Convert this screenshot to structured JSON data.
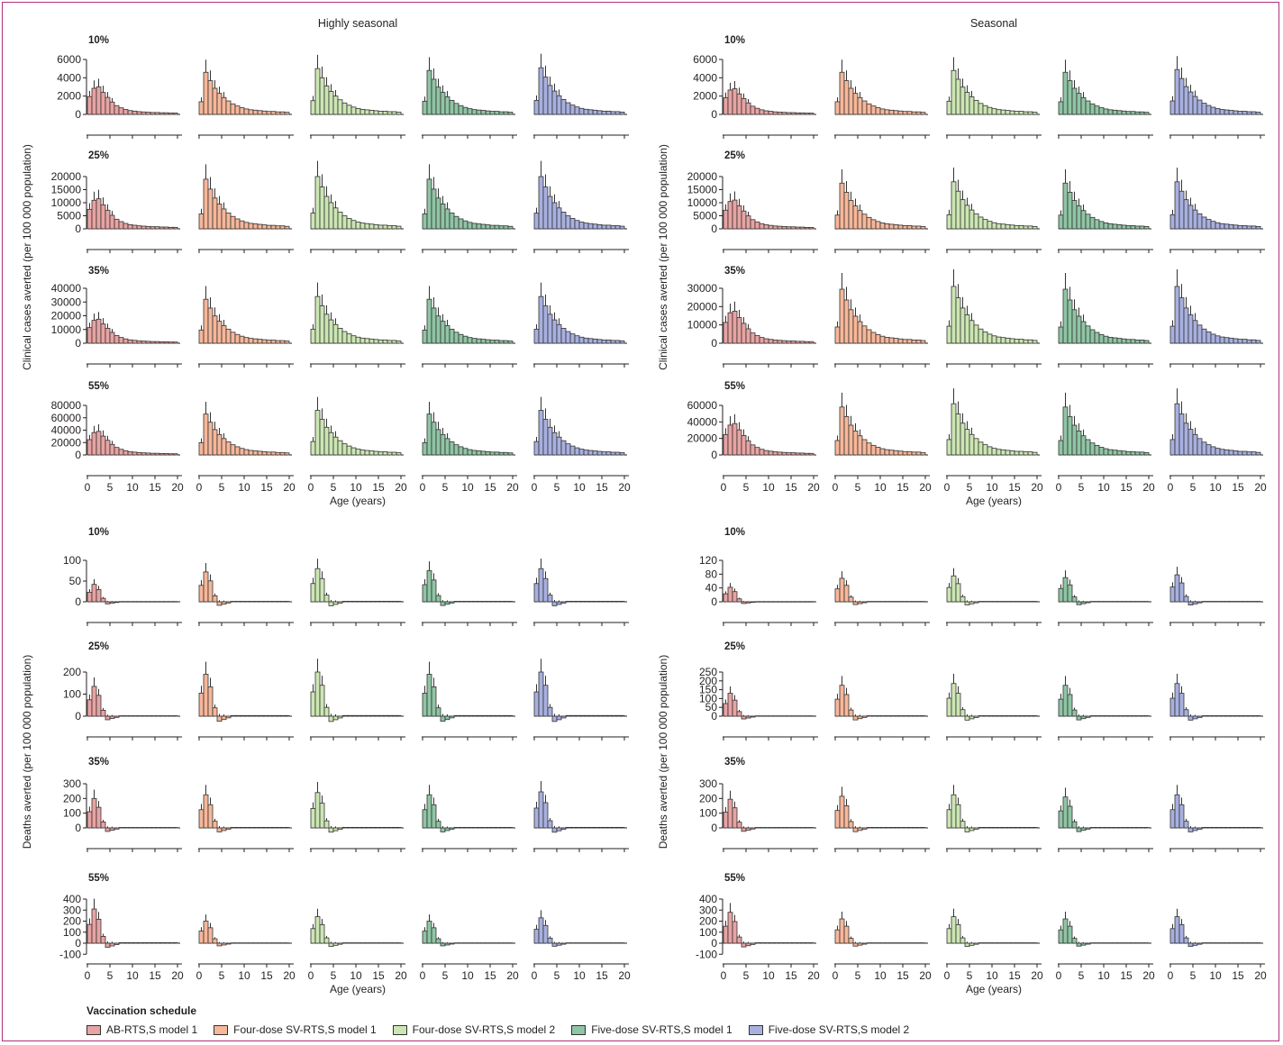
{
  "chart_data": {
    "type": "bar",
    "panels": [
      "Highly seasonal",
      "Seasonal"
    ],
    "outcomes": [
      {
        "id": "cases",
        "ylabel": "Clinical cases averted (per 100 000 population)"
      },
      {
        "id": "deaths",
        "ylabel": "Deaths averted (per 100 000 population)"
      }
    ],
    "coverages": [
      "10%",
      "25%",
      "35%",
      "55%"
    ],
    "schedules": [
      {
        "name": "AB-RTS,S model 1",
        "color": "#e8a3a3"
      },
      {
        "name": "Four-dose SV-RTS,S model 1",
        "color": "#f7b79a"
      },
      {
        "name": "Four-dose SV-RTS,S model 2",
        "color": "#cce6b3"
      },
      {
        "name": "Five-dose SV-RTS,S model 1",
        "color": "#8fc5a4"
      },
      {
        "name": "Five-dose SV-RTS,S model 2",
        "color": "#a8b0e0"
      }
    ],
    "xlabel": "Age (years)",
    "xticks": [
      0,
      5,
      10,
      15,
      20
    ],
    "ylims": {
      "Highly seasonal": {
        "cases": [
          [
            0,
            6000
          ],
          [
            0,
            20000
          ],
          [
            0,
            40000
          ],
          [
            0,
            80000
          ]
        ],
        "deaths": [
          [
            0,
            100
          ],
          [
            0,
            200
          ],
          [
            0,
            300
          ],
          [
            -100,
            400
          ]
        ]
      },
      "Seasonal": {
        "cases": [
          [
            0,
            6000
          ],
          [
            0,
            20000
          ],
          [
            0,
            30000
          ],
          [
            0,
            60000
          ]
        ],
        "deaths": [
          [
            0,
            120
          ],
          [
            0,
            250
          ],
          [
            0,
            300
          ],
          [
            -100,
            400
          ]
        ]
      }
    },
    "yticks": {
      "Highly seasonal": {
        "cases": [
          [
            0,
            2000,
            4000,
            6000
          ],
          [
            0,
            5000,
            10000,
            15000,
            20000
          ],
          [
            0,
            10000,
            20000,
            30000,
            40000
          ],
          [
            0,
            20000,
            40000,
            60000,
            80000
          ]
        ],
        "deaths": [
          [
            0,
            50,
            100
          ],
          [
            0,
            100,
            200
          ],
          [
            0,
            100,
            200,
            300
          ],
          [
            -100,
            0,
            100,
            200,
            300,
            400
          ]
        ]
      },
      "Seasonal": {
        "cases": [
          [
            0,
            2000,
            4000,
            6000
          ],
          [
            0,
            5000,
            10000,
            15000,
            20000
          ],
          [
            0,
            10000,
            20000,
            30000
          ],
          [
            0,
            20000,
            40000,
            60000
          ]
        ],
        "deaths": [
          [
            0,
            40,
            80,
            120
          ],
          [
            0,
            50,
            100,
            150,
            200,
            250
          ],
          [
            0,
            100,
            200,
            300
          ],
          [
            -100,
            0,
            100,
            200,
            300,
            400
          ]
        ]
      }
    },
    "profiles": {
      "ab": [
        0.65,
        0.95,
        1.0,
        0.8,
        0.62,
        0.45,
        0.32,
        0.24,
        0.18,
        0.14,
        0.12,
        0.1,
        0.09,
        0.08,
        0.07,
        0.07,
        0.06,
        0.06,
        0.05,
        0.05
      ],
      "sv": [
        0.3,
        1.0,
        0.8,
        0.62,
        0.5,
        0.4,
        0.32,
        0.25,
        0.2,
        0.16,
        0.13,
        0.11,
        0.1,
        0.09,
        0.08,
        0.07,
        0.07,
        0.06,
        0.06,
        0.05
      ]
    },
    "peaks": {
      "Highly seasonal": {
        "cases": [
          [
            3000,
            4600,
            5000,
            4800,
            5100
          ],
          [
            11500,
            19000,
            20000,
            19000,
            20000
          ],
          [
            17500,
            32000,
            34000,
            32000,
            34000
          ],
          [
            38000,
            66000,
            72000,
            66000,
            72000
          ]
        ],
        "deaths": [
          [
            42,
            72,
            80,
            75,
            80
          ],
          [
            135,
            190,
            200,
            190,
            200
          ],
          [
            200,
            225,
            240,
            225,
            245
          ],
          [
            310,
            200,
            240,
            200,
            230
          ]
        ]
      },
      "Seasonal": {
        "cases": [
          [
            2800,
            4600,
            4800,
            4600,
            4900
          ],
          [
            11000,
            17500,
            18000,
            17500,
            18000
          ],
          [
            17500,
            29500,
            31000,
            29500,
            31000
          ],
          [
            38000,
            58000,
            62000,
            58000,
            62000
          ]
        ],
        "deaths": [
          [
            42,
            68,
            75,
            70,
            78
          ],
          [
            130,
            175,
            185,
            175,
            185
          ],
          [
            195,
            215,
            225,
            210,
            225
          ],
          [
            280,
            220,
            240,
            220,
            240
          ]
        ]
      }
    },
    "legend": {
      "title": "Vaccination schedule",
      "position": "bottom-left"
    }
  }
}
